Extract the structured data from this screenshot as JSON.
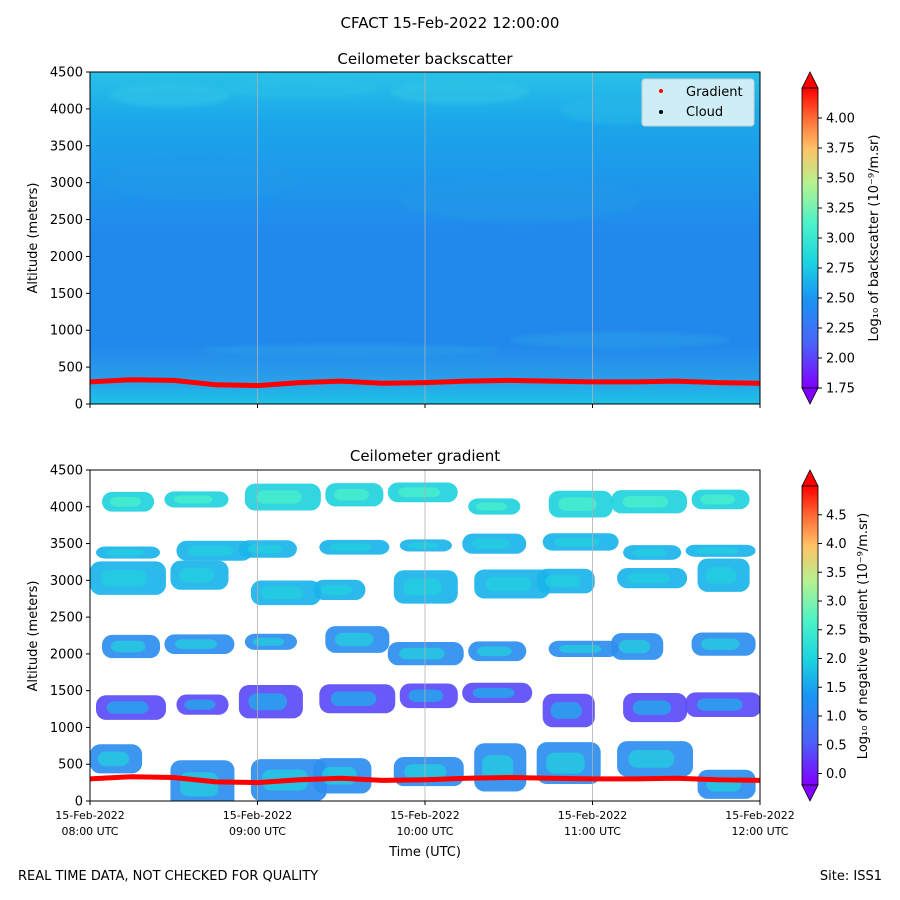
{
  "header": {
    "suptitle": "CFACT 15-Feb-2022 12:00:00"
  },
  "footer": {
    "left": "REAL TIME DATA, NOT CHECKED FOR QUALITY",
    "right": "Site: ISS1"
  },
  "colors": {
    "gradient_marker": "#ff0000",
    "cloud_marker": "#000000",
    "grid": "#b0b0b0",
    "legend_bg": "#cdeef7"
  },
  "chart_data": [
    {
      "type": "heatmap",
      "title": "Ceilometer backscatter",
      "ylabel": "Altitude (meters)",
      "ylim": [
        0,
        4500
      ],
      "yticks": [
        0,
        500,
        1000,
        1500,
        2000,
        2500,
        3000,
        3500,
        4000,
        4500
      ],
      "xticks": [
        {
          "label1": "15-Feb-2022",
          "label2": "08:00 UTC"
        },
        {
          "label1": "15-Feb-2022",
          "label2": "09:00 UTC"
        },
        {
          "label1": "15-Feb-2022",
          "label2": "10:00 UTC"
        },
        {
          "label1": "15-Feb-2022",
          "label2": "11:00 UTC"
        },
        {
          "label1": "15-Feb-2022",
          "label2": "12:00 UTC"
        }
      ],
      "xtick_labels_visible": false,
      "grid": "vertical",
      "colorbar": {
        "label": "Log₁₀ of backscatter (10⁻⁹/m.sr)",
        "range": [
          1.75,
          4.25
        ],
        "ticks": [
          "1.75",
          "2.00",
          "2.25",
          "2.50",
          "2.75",
          "3.00",
          "3.25",
          "3.50",
          "3.75",
          "4.00"
        ]
      },
      "legend": {
        "placement": "top-right",
        "entries": [
          {
            "label": "Gradient",
            "color": "#ff0000"
          },
          {
            "label": "Cloud",
            "color": "#000000"
          }
        ]
      },
      "gradient_series": {
        "name": "Gradient",
        "x_hours": [
          8.0,
          8.25,
          8.5,
          8.75,
          9.0,
          9.25,
          9.5,
          9.75,
          10.0,
          10.25,
          10.5,
          10.75,
          11.0,
          11.25,
          11.5,
          11.75,
          12.0
        ],
        "altitude_m": [
          300,
          330,
          320,
          260,
          250,
          290,
          310,
          280,
          290,
          310,
          320,
          310,
          300,
          300,
          310,
          290,
          280
        ]
      }
    },
    {
      "type": "heatmap",
      "title": "Ceilometer gradient",
      "xlabel": "Time (UTC)",
      "ylabel": "Altitude (meters)",
      "ylim": [
        0,
        4500
      ],
      "yticks": [
        0,
        500,
        1000,
        1500,
        2000,
        2500,
        3000,
        3500,
        4000,
        4500
      ],
      "xticks": [
        {
          "label1": "15-Feb-2022",
          "label2": "08:00 UTC"
        },
        {
          "label1": "15-Feb-2022",
          "label2": "09:00 UTC"
        },
        {
          "label1": "15-Feb-2022",
          "label2": "10:00 UTC"
        },
        {
          "label1": "15-Feb-2022",
          "label2": "11:00 UTC"
        },
        {
          "label1": "15-Feb-2022",
          "label2": "12:00 UTC"
        }
      ],
      "xtick_labels_visible": true,
      "grid": "vertical",
      "colorbar": {
        "label": "Log₁₀ of negative gradient (10⁻⁹/m.sr)",
        "range": [
          -0.2,
          5.0
        ],
        "ticks": [
          "0.0",
          "0.5",
          "1.0",
          "1.5",
          "2.0",
          "2.5",
          "3.0",
          "3.5",
          "4.0",
          "4.5"
        ]
      },
      "gradient_series": {
        "name": "Gradient",
        "x_hours": [
          8.0,
          8.25,
          8.5,
          8.75,
          9.0,
          9.25,
          9.5,
          9.75,
          10.0,
          10.25,
          10.5,
          10.75,
          11.0,
          11.25,
          11.5,
          11.75,
          12.0
        ],
        "altitude_m": [
          300,
          330,
          320,
          260,
          250,
          290,
          310,
          280,
          290,
          310,
          320,
          310,
          300,
          300,
          310,
          290,
          280
        ]
      },
      "layers_m": [
        {
          "bottom": 40,
          "top": 760,
          "level": 1.2
        },
        {
          "bottom": 1100,
          "top": 1600,
          "level": 0.8
        },
        {
          "bottom": 1900,
          "top": 2300,
          "level": 1.2
        },
        {
          "bottom": 2700,
          "top": 3200,
          "level": 1.4
        },
        {
          "bottom": 3300,
          "top": 3600,
          "level": 1.4
        },
        {
          "bottom": 3900,
          "top": 4300,
          "level": 1.7
        }
      ]
    }
  ]
}
